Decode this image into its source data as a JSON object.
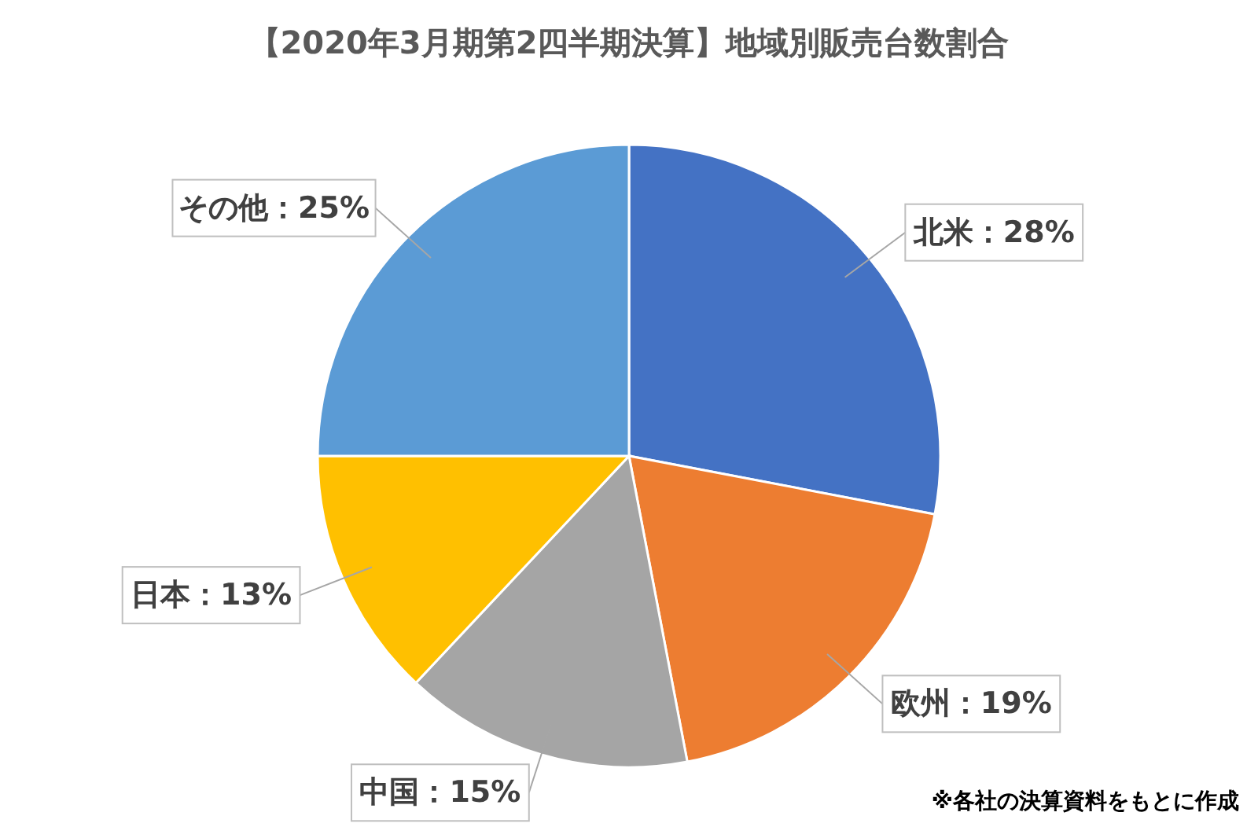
{
  "chart_data": {
    "type": "pie",
    "title": "【2020年3月期第2四半期決算】地域別販売台数割合",
    "categories": [
      "北米",
      "欧州",
      "中国",
      "日本",
      "その他"
    ],
    "values": [
      28,
      19,
      15,
      13,
      25
    ],
    "value_labels": [
      "28%",
      "19%",
      "15%",
      "13%",
      "25%"
    ],
    "colors": [
      "#4472c4",
      "#ed7d31",
      "#a5a5a5",
      "#ffc000",
      "#5b9bd5"
    ],
    "annotations": [
      "※各社の決算資料をもとに作成"
    ]
  }
}
